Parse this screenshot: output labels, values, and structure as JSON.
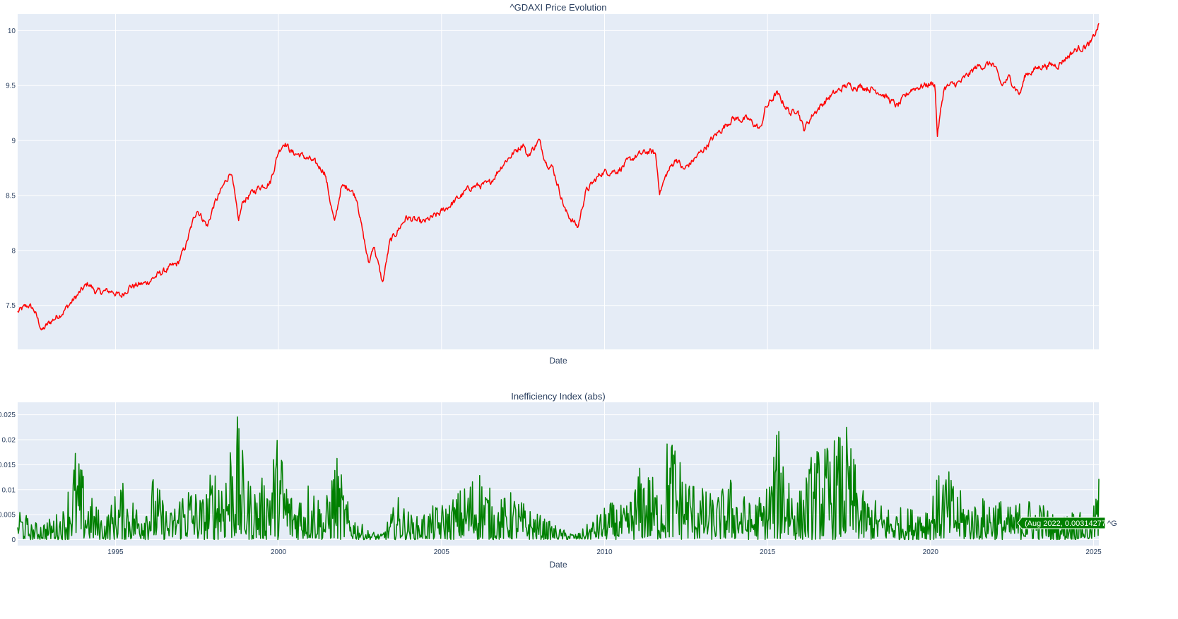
{
  "chart_data": [
    {
      "type": "line",
      "title": "^GDAXI Price Evolution",
      "xlabel": "Date",
      "ylabel": "",
      "xlim": [
        "1992-01-01",
        "2025-03-01"
      ],
      "ylim": [
        7.1,
        10.15
      ],
      "yticks": [
        "7.5",
        "8",
        "8.5",
        "9",
        "9.5",
        "10"
      ],
      "ytick_values": [
        7.5,
        8,
        8.5,
        9,
        9.5,
        10
      ],
      "xtick_values": [
        "1995-01-01",
        "2000-01-01",
        "2005-01-01",
        "2010-01-01",
        "2015-01-01",
        "2020-01-01",
        "2025-01-01"
      ],
      "show_xtick_labels": false,
      "grid": true,
      "series": [
        {
          "color": "#ff0000",
          "x": [
            "1992-01-01",
            "1992-03-01",
            "1992-05-01",
            "1992-07-01",
            "1992-10-01",
            "1993-01-01",
            "1993-06-01",
            "1993-12-01",
            "1994-03-01",
            "1994-06-01",
            "1994-12-01",
            "1995-03-01",
            "1995-06-01",
            "1995-12-01",
            "1996-06-01",
            "1996-12-01",
            "1997-03-01",
            "1997-07-01",
            "1997-10-28",
            "1998-01-01",
            "1998-07-20",
            "1998-10-08",
            "1998-12-01",
            "1999-06-01",
            "1999-10-01",
            "2000-01-01",
            "2000-03-07",
            "2000-06-01",
            "2000-09-01",
            "2001-01-01",
            "2001-06-01",
            "2001-09-21",
            "2001-12-01",
            "2002-03-01",
            "2002-06-01",
            "2002-07-24",
            "2002-10-09",
            "2002-12-01",
            "2003-03-12",
            "2003-06-01",
            "2003-12-01",
            "2004-06-01",
            "2004-12-01",
            "2005-06-01",
            "2005-12-01",
            "2006-06-13",
            "2006-12-01",
            "2007-07-13",
            "2007-08-16",
            "2007-12-28",
            "2008-03-17",
            "2008-06-01",
            "2008-10-24",
            "2009-03-09",
            "2009-06-01",
            "2009-12-01",
            "2010-06-01",
            "2010-12-01",
            "2011-05-01",
            "2011-07-25",
            "2011-09-12",
            "2011-12-01",
            "2012-03-15",
            "2012-06-04",
            "2012-12-01",
            "2013-06-01",
            "2013-12-01",
            "2014-06-01",
            "2014-10-16",
            "2014-12-01",
            "2015-04-10",
            "2015-09-24",
            "2015-12-01",
            "2016-02-11",
            "2016-06-01",
            "2016-12-01",
            "2017-06-01",
            "2017-12-01",
            "2018-06-01",
            "2018-12-27",
            "2019-06-01",
            "2019-12-01",
            "2020-02-19",
            "2020-03-18",
            "2020-06-01",
            "2020-12-01",
            "2021-06-01",
            "2021-12-01",
            "2022-03-08",
            "2022-06-01",
            "2022-09-29",
            "2022-12-01",
            "2023-06-01",
            "2023-12-01",
            "2024-06-01",
            "2024-12-01",
            "2025-03-01"
          ],
          "values": [
            7.44,
            7.47,
            7.5,
            7.46,
            7.27,
            7.35,
            7.45,
            7.62,
            7.7,
            7.62,
            7.63,
            7.58,
            7.67,
            7.7,
            7.8,
            7.88,
            8.05,
            8.38,
            8.22,
            8.4,
            8.73,
            8.26,
            8.45,
            8.58,
            8.62,
            8.9,
            8.99,
            8.89,
            8.87,
            8.82,
            8.72,
            8.24,
            8.57,
            8.58,
            8.47,
            8.2,
            7.87,
            8.06,
            7.7,
            8.07,
            8.3,
            8.25,
            8.33,
            8.45,
            8.58,
            8.6,
            8.8,
            8.98,
            8.85,
            9.0,
            8.81,
            8.75,
            8.35,
            8.21,
            8.53,
            8.71,
            8.73,
            8.85,
            8.9,
            8.88,
            8.53,
            8.7,
            8.84,
            8.73,
            8.88,
            9.05,
            9.2,
            9.19,
            9.1,
            9.28,
            9.43,
            9.24,
            9.3,
            9.1,
            9.25,
            9.4,
            9.5,
            9.49,
            9.45,
            9.31,
            9.47,
            9.51,
            9.52,
            9.05,
            9.48,
            9.53,
            9.67,
            9.7,
            9.5,
            9.57,
            9.42,
            9.6,
            9.68,
            9.69,
            9.82,
            9.88,
            10.05
          ]
        }
      ]
    },
    {
      "type": "line",
      "title": "Inefficiency Index (abs)",
      "xlabel": "Date",
      "ylabel": "",
      "xlim": [
        "1992-01-01",
        "2025-03-01"
      ],
      "ylim": [
        -0.0012,
        0.0275
      ],
      "yticks": [
        "0",
        "0.005",
        "0.01",
        "0.015",
        "0.02",
        "0.025"
      ],
      "ytick_values": [
        0,
        0.005,
        0.01,
        0.015,
        0.02,
        0.025
      ],
      "xticks": [
        "1995",
        "2000",
        "2005",
        "2010",
        "2015",
        "2020",
        "2025"
      ],
      "xtick_values": [
        "1995-01-01",
        "2000-01-01",
        "2005-01-01",
        "2010-01-01",
        "2015-01-01",
        "2020-01-01",
        "2025-01-01"
      ],
      "grid": true,
      "series": [
        {
          "color": "#008000",
          "x": [
            "1992-01-01",
            "1992-06-01",
            "1993-01-01",
            "1993-06-01",
            "1993-10-01",
            "1994-03-01",
            "1994-09-01",
            "1995-03-01",
            "1995-09-01",
            "1996-03-01",
            "1996-09-01",
            "1997-03-01",
            "1997-09-01",
            "1998-01-01",
            "1998-06-01",
            "1998-09-01",
            "1999-01-01",
            "1999-06-01",
            "2000-01-01",
            "2000-06-01",
            "2001-01-01",
            "2001-06-01",
            "2001-10-01",
            "2002-03-01",
            "2002-09-01",
            "2003-03-01",
            "2003-09-01",
            "2004-03-01",
            "2004-09-01",
            "2005-03-01",
            "2005-09-01",
            "2006-03-01",
            "2006-09-01",
            "2007-03-01",
            "2007-09-01",
            "2008-03-01",
            "2008-09-01",
            "2009-03-01",
            "2009-09-01",
            "2010-03-01",
            "2010-09-01",
            "2011-03-01",
            "2011-09-01",
            "2012-01-01",
            "2012-06-01",
            "2012-12-01",
            "2013-06-01",
            "2013-12-01",
            "2014-06-01",
            "2014-12-01",
            "2015-06-01",
            "2015-12-01",
            "2016-06-01",
            "2016-12-01",
            "2017-06-01",
            "2017-12-01",
            "2018-06-01",
            "2018-12-01",
            "2019-06-01",
            "2019-12-01",
            "2020-06-01",
            "2020-12-01",
            "2021-06-01",
            "2021-12-01",
            "2022-06-01",
            "2022-12-01",
            "2023-06-01",
            "2023-12-01",
            "2024-06-01",
            "2024-12-01",
            "2025-03-01"
          ],
          "values": [
            0.0075,
            0.003,
            0.004,
            0.006,
            0.018,
            0.009,
            0.004,
            0.011,
            0.007,
            0.012,
            0.005,
            0.012,
            0.008,
            0.014,
            0.017,
            0.026,
            0.012,
            0.01,
            0.02,
            0.009,
            0.012,
            0.006,
            0.017,
            0.006,
            0.002,
            0.001,
            0.008,
            0.004,
            0.006,
            0.007,
            0.01,
            0.014,
            0.007,
            0.009,
            0.006,
            0.004,
            0.002,
            0.001,
            0.004,
            0.007,
            0.006,
            0.015,
            0.01,
            0.022,
            0.014,
            0.01,
            0.008,
            0.012,
            0.007,
            0.009,
            0.023,
            0.008,
            0.017,
            0.018,
            0.021,
            0.009,
            0.007,
            0.006,
            0.006,
            0.008,
            0.014,
            0.009,
            0.007,
            0.009,
            0.006,
            0.008,
            0.007,
            0.004,
            0.006,
            0.003,
            0.012
          ]
        }
      ]
    }
  ],
  "hover": {
    "label": "(Aug 2022, 0.003142775)",
    "overflow_text": "^G",
    "color": "#008000"
  }
}
